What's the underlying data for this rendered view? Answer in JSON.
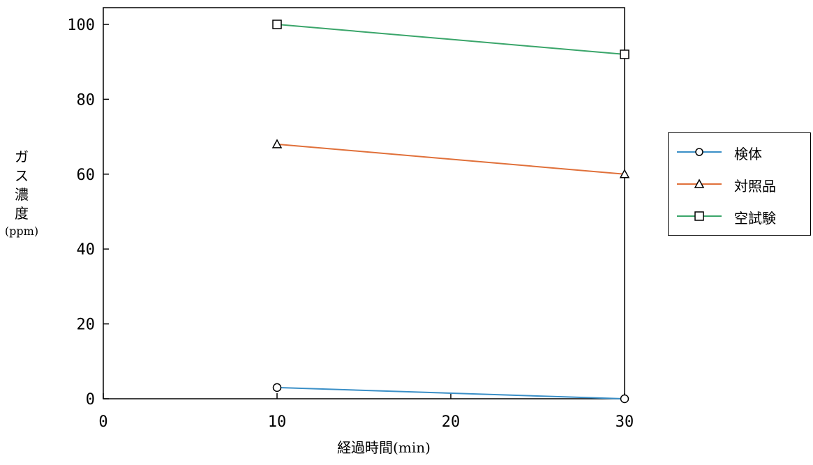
{
  "chart_data": {
    "type": "line",
    "title": "",
    "xlabel": "経過時間(min)",
    "ylabel": {
      "chars": [
        "ガ",
        "ス",
        "濃",
        "度"
      ],
      "unit": "(ppm)"
    },
    "xlim": [
      0,
      30
    ],
    "ylim": [
      0,
      100
    ],
    "x_ticks": [
      0,
      10,
      20,
      30
    ],
    "y_ticks": [
      0,
      20,
      40,
      60,
      80,
      100
    ],
    "grid": false,
    "legend_position": "right",
    "series": [
      {
        "name": "検体",
        "marker": "circle",
        "color": "#3a8fc7",
        "x": [
          10,
          30
        ],
        "y": [
          3,
          0
        ]
      },
      {
        "name": "対照品",
        "marker": "triangle",
        "color": "#e0703a",
        "x": [
          10,
          30
        ],
        "y": [
          68,
          60
        ]
      },
      {
        "name": "空試験",
        "marker": "square",
        "color": "#3aa56a",
        "x": [
          10,
          30
        ],
        "y": [
          100,
          92
        ]
      }
    ]
  }
}
